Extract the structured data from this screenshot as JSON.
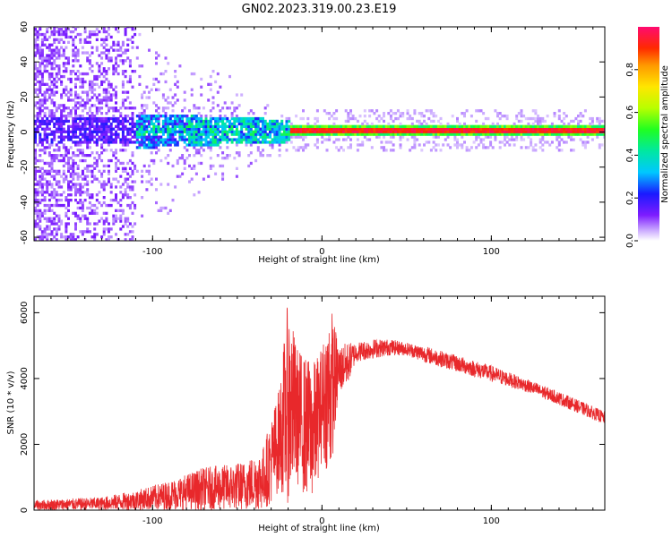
{
  "figure": {
    "title": "GN02.2023.319.00.23.E19"
  },
  "chart_data": [
    {
      "type": "heatmap",
      "xlabel": "Height of straight line (km)",
      "ylabel": "Frequency (Hz)",
      "xlim": [
        -170,
        167
      ],
      "ylim": [
        -62,
        60
      ],
      "xticks": [
        -100,
        0,
        100
      ],
      "yticks": [
        -60,
        -40,
        -20,
        0,
        20,
        40,
        60
      ],
      "grid": false,
      "colorbar": {
        "label": "Normalized spectral amplitude",
        "ticks": [
          0.0,
          0.2,
          0.4,
          0.6,
          0.8
        ],
        "range": [
          0,
          1
        ],
        "colormap": "rainbow"
      },
      "features": [
        {
          "x_range": [
            -170,
            -110
          ],
          "description_values": {
            "freq_spread": 60,
            "amplitude": 0.05
          }
        },
        {
          "x_range": [
            -135,
            -20
          ],
          "description_values": {
            "center_freq": 0,
            "half_width": 8,
            "amplitude": 0.35
          }
        },
        {
          "x_range": [
            -20,
            167
          ],
          "description_values": {
            "center_freq": 0,
            "half_width": 2,
            "amplitude": 0.9
          }
        }
      ]
    },
    {
      "type": "line",
      "xlabel": "Height of straight line (km)",
      "ylabel": "SNR (10 * v/v)",
      "xlim": [
        -170,
        167
      ],
      "ylim": [
        0,
        6500
      ],
      "xticks": [
        -100,
        0,
        100
      ],
      "yticks": [
        0,
        2000,
        4000,
        6000
      ],
      "grid": false,
      "series": [
        {
          "color": "#e8282b",
          "envelope": {
            "x": [
              -170,
              -150,
              -130,
              -110,
              -90,
              -70,
              -55,
              -45,
              -35,
              -30,
              -25,
              -20,
              -15,
              -10,
              -5,
              0,
              5,
              10,
              15,
              20,
              30,
              40,
              50,
              60,
              80,
              100,
              120,
              140,
              167
            ],
            "low": [
              0,
              0,
              0,
              0,
              0,
              0,
              0,
              0,
              0,
              200,
              600,
              200,
              800,
              400,
              300,
              1500,
              1000,
              3500,
              3800,
              4500,
              4600,
              4700,
              4700,
              4500,
              4200,
              3900,
              3600,
              3200,
              2600
            ],
            "high": [
              300,
              350,
              400,
              600,
              900,
              1300,
              1400,
              1500,
              1900,
              2800,
              3800,
              6450,
              5000,
              4700,
              4500,
              5000,
              6350,
              5000,
              5100,
              5100,
              5200,
              5200,
              5100,
              5000,
              4700,
              4400,
              4000,
              3600,
              3000
            ]
          }
        }
      ]
    }
  ]
}
